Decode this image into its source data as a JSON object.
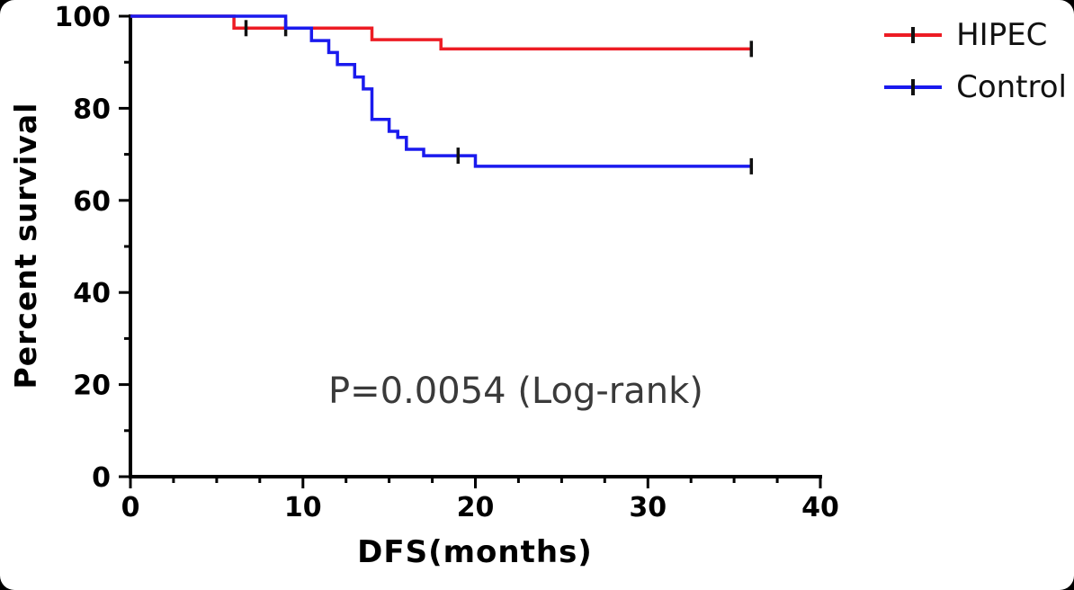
{
  "chart_data": {
    "type": "line",
    "subtype": "kaplan-meier-step",
    "title": "",
    "xlabel": "DFS(months)",
    "ylabel": "Percent survival",
    "annotation": "P=0.0054 (Log-rank)",
    "xlim": [
      0,
      40
    ],
    "ylim": [
      0,
      100
    ],
    "x_major_ticks": [
      0,
      10,
      20,
      30,
      40
    ],
    "x_minor_step": 2.5,
    "y_major_ticks": [
      0,
      20,
      40,
      60,
      80,
      100
    ],
    "y_minor_step": 10,
    "grid": false,
    "legend_position": "top-right",
    "axis_color": "#000000",
    "censor_color": "#111111",
    "series": [
      {
        "name": "HIPEC",
        "color": "#ed1c24",
        "points": [
          [
            0,
            100
          ],
          [
            6,
            100
          ],
          [
            6,
            97.4
          ],
          [
            14,
            97.4
          ],
          [
            14,
            94.9
          ],
          [
            18,
            94.9
          ],
          [
            18,
            92.9
          ],
          [
            36,
            92.9
          ]
        ],
        "censors": [
          [
            6.7,
            97.4
          ],
          [
            9,
            97.4
          ],
          [
            36,
            92.9
          ]
        ]
      },
      {
        "name": "Control",
        "color": "#1a1aee",
        "points": [
          [
            0,
            100
          ],
          [
            9,
            100
          ],
          [
            9,
            97.4
          ],
          [
            10.5,
            97.4
          ],
          [
            10.5,
            94.7
          ],
          [
            11.5,
            94.7
          ],
          [
            11.5,
            92.1
          ],
          [
            12,
            92.1
          ],
          [
            12,
            89.5
          ],
          [
            13,
            89.5
          ],
          [
            13,
            86.8
          ],
          [
            13.5,
            86.8
          ],
          [
            13.5,
            84.2
          ],
          [
            14,
            84.2
          ],
          [
            14,
            77.6
          ],
          [
            15,
            77.6
          ],
          [
            15,
            75.0
          ],
          [
            15.5,
            75.0
          ],
          [
            15.5,
            73.7
          ],
          [
            16,
            73.7
          ],
          [
            16,
            71.1
          ],
          [
            17,
            71.1
          ],
          [
            17,
            69.7
          ],
          [
            20,
            69.7
          ],
          [
            20,
            67.4
          ],
          [
            36,
            67.4
          ]
        ],
        "censors": [
          [
            19,
            69.7
          ],
          [
            36,
            67.4
          ]
        ]
      }
    ]
  }
}
